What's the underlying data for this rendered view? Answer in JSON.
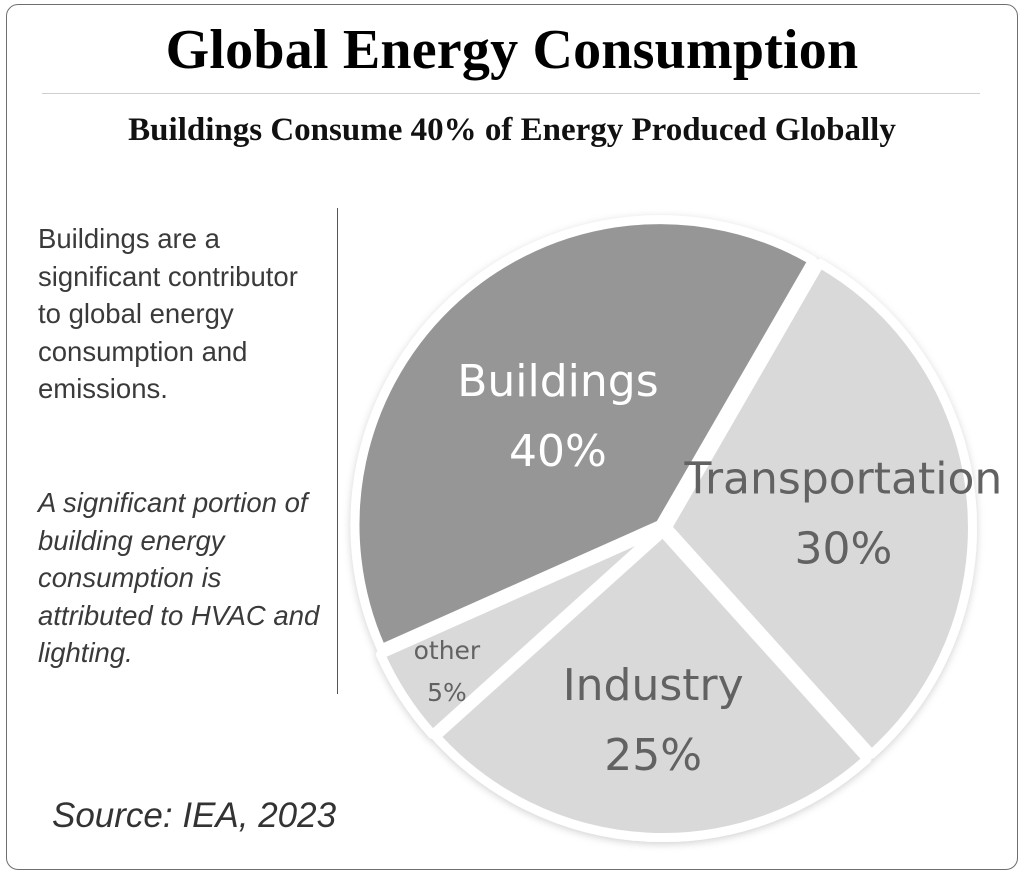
{
  "title": "Global Energy Consumption",
  "subtitle": "Buildings Consume 40% of Energy Produced Globally",
  "side_text": {
    "paragraph1": "Buildings are a significant contributor to global energy consumption and emissions.",
    "paragraph2": "A significant portion of building energy consumption is attributed to HVAC and lighting."
  },
  "source": "Source: IEA, 2023",
  "colors": {
    "buildings": "#969696",
    "transportation": "#d9d9d9",
    "industry": "#d9d9d9",
    "other": "#d9d9d9",
    "label_dark": "#626262",
    "label_light": "#ffffff"
  },
  "chart_data": {
    "type": "pie",
    "title": "Global Energy Consumption",
    "slices": [
      {
        "label": "Transportation",
        "value": 30,
        "value_label": "30%"
      },
      {
        "label": "Industry",
        "value": 25,
        "value_label": "25%"
      },
      {
        "label": "other",
        "value": 5,
        "value_label": "5%"
      },
      {
        "label": "Buildings",
        "value": 40,
        "value_label": "40%"
      }
    ]
  }
}
